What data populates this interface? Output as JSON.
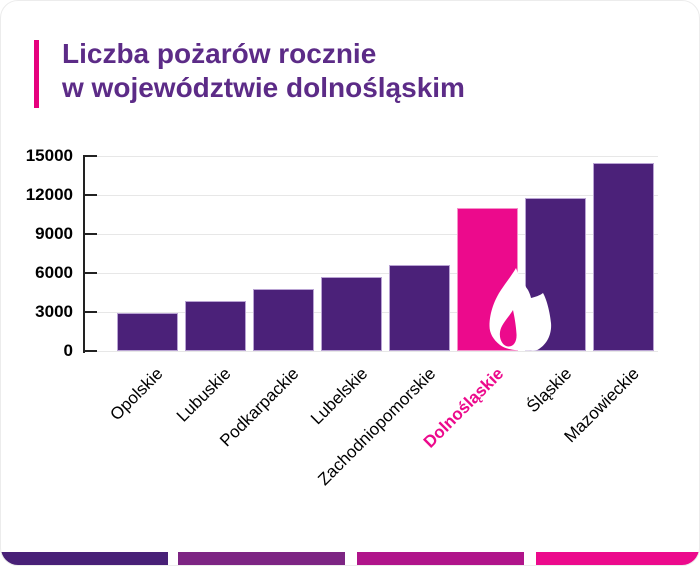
{
  "header": {
    "title_line1": "Liczba pożarów rocznie",
    "title_line2": "w województwie dolnośląskim",
    "title_color": "#5C2B87",
    "accent_color": "#E6017E"
  },
  "chart_data": {
    "type": "bar",
    "title": "Liczba pożarów rocznie w województwie dolnośląskim",
    "categories": [
      "Opolskie",
      "Lubuskie",
      "Podkarpackie",
      "Lubelskie",
      "Zachodniopomorskie",
      "Dolnośląskie",
      "Śląskie",
      "Mazowieckie"
    ],
    "values": [
      2950,
      3850,
      4800,
      5700,
      6600,
      11000,
      11750,
      14500
    ],
    "highlight_category": "Dolnośląskie",
    "highlight_index": 5,
    "ylim": [
      0,
      15000
    ],
    "yticks": [
      0,
      3000,
      6000,
      9000,
      12000,
      15000
    ],
    "xlabel": "",
    "ylabel": "",
    "grid": true,
    "legend": "none",
    "annotations": [
      "white flame icon overlapping highlighted bar"
    ],
    "colors": {
      "bar": "#4B2179",
      "bar_stroke": "#B9A3D3",
      "highlight": "#EC0A8C",
      "highlight_stroke": "#F590CA",
      "gridline": "#E7E7E7",
      "axis": "#222222",
      "ytick_label": "#000000",
      "xtick_label": "#000000",
      "highlight_label": "#EC0A8C",
      "flame_icon": "#FFFFFF"
    }
  },
  "footer_strip": {
    "colors": [
      "#482077",
      "#7D2583",
      "#B0148A",
      "#EC0A8C"
    ]
  }
}
